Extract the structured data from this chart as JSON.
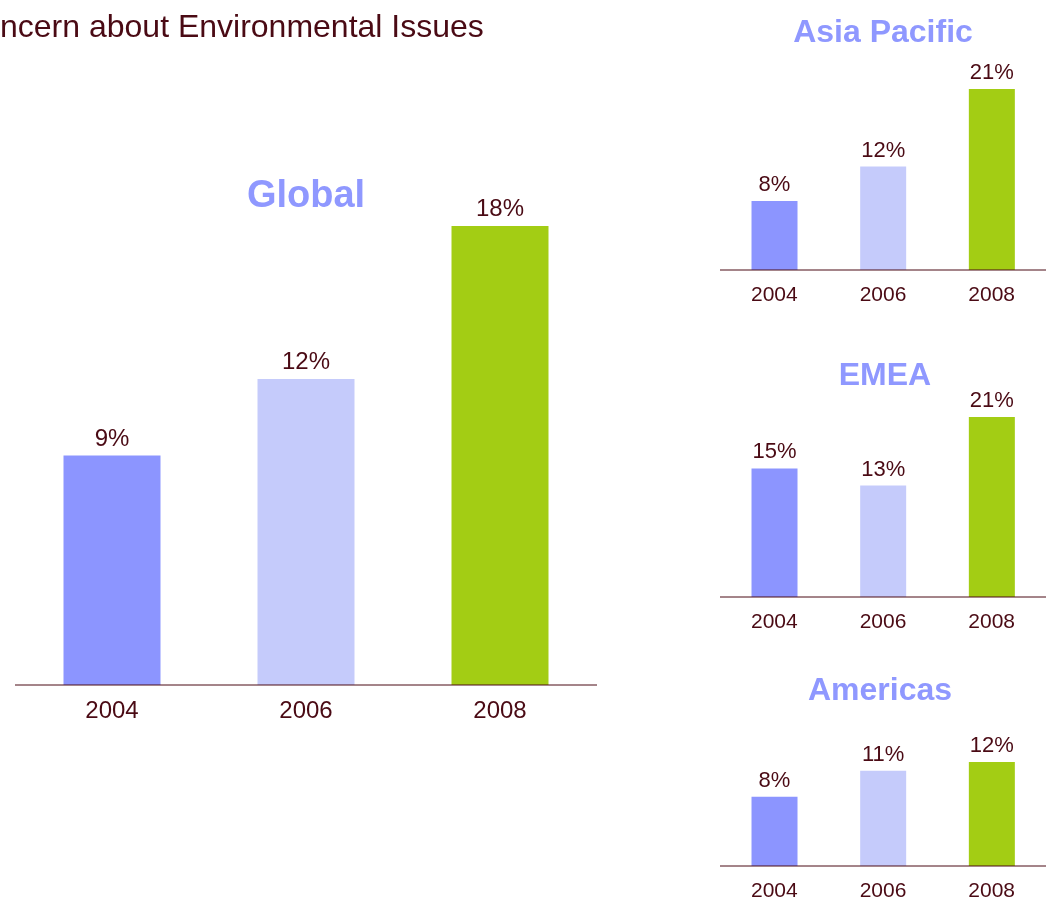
{
  "chart_data": [
    {
      "type": "bar",
      "title": "ncern about Environmental Issues",
      "subtitle": "Global",
      "categories": [
        "2004",
        "2006",
        "2008"
      ],
      "values": [
        9,
        12,
        18
      ],
      "value_labels": [
        "9%",
        "12%",
        "18%"
      ],
      "colors": [
        "#8c95ff",
        "#c5cbfb",
        "#a3cd14"
      ]
    },
    {
      "type": "bar",
      "title": "Asia Pacific",
      "categories": [
        "2004",
        "2006",
        "2008"
      ],
      "values": [
        8,
        12,
        21
      ],
      "value_labels": [
        "8%",
        "12%",
        "21%"
      ],
      "colors": [
        "#8c95ff",
        "#c5cbfb",
        "#a3cd14"
      ]
    },
    {
      "type": "bar",
      "title": "EMEA",
      "categories": [
        "2004",
        "2006",
        "2008"
      ],
      "values": [
        15,
        13,
        21
      ],
      "value_labels": [
        "15%",
        "13%",
        "21%"
      ],
      "colors": [
        "#8c95ff",
        "#c5cbfb",
        "#a3cd14"
      ]
    },
    {
      "type": "bar",
      "title": "Americas",
      "categories": [
        "2004",
        "2006",
        "2008"
      ],
      "values": [
        8,
        11,
        12
      ],
      "value_labels": [
        "8%",
        "11%",
        "12%"
      ],
      "colors": [
        "#8c95ff",
        "#c5cbfb",
        "#a3cd14"
      ]
    }
  ]
}
